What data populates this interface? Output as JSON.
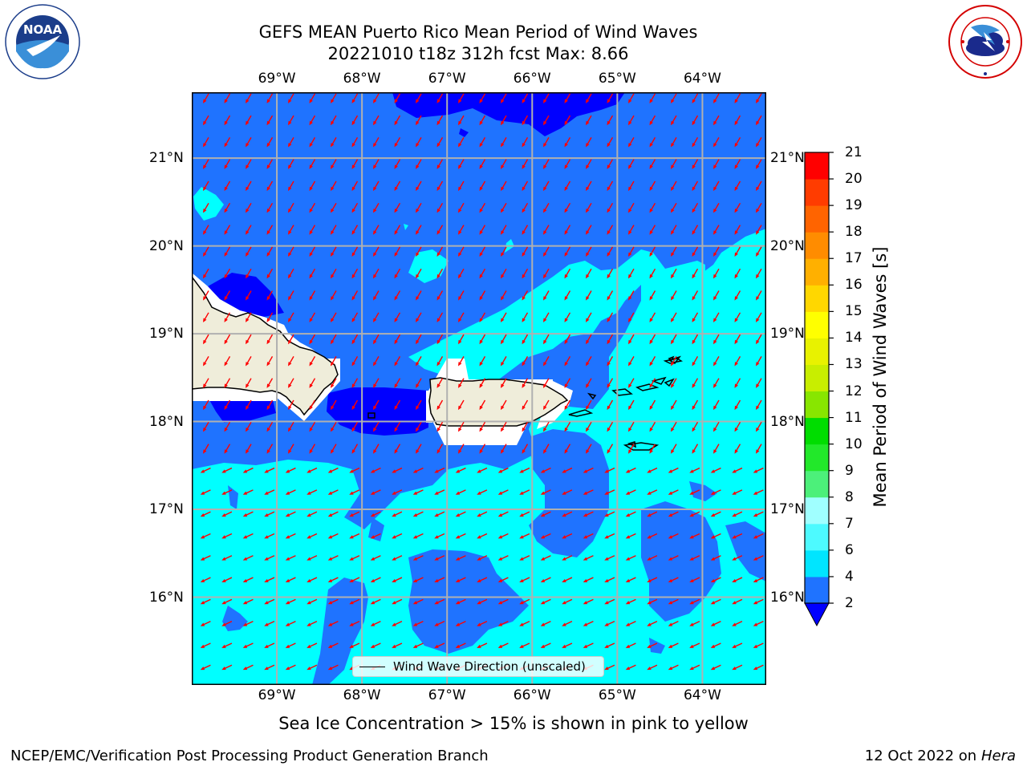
{
  "title": {
    "line1": "GEFS MEAN Puerto Rico Mean Period of Wind Waves",
    "line2": "20221010 t18z 312h fcst   Max: 8.66"
  },
  "logos": {
    "left": {
      "name": "noaa-logo",
      "text": "NOAA",
      "ring_text": "NATIONAL OCEANIC AND ATMOSPHERIC ADMINISTRATION · U.S. DEPARTMENT OF COMMERCE"
    },
    "right": {
      "name": "nws-logo",
      "ring_text": "NATIONAL WEATHER SERVICE"
    }
  },
  "map": {
    "lon_labels": [
      "69°W",
      "68°W",
      "67°W",
      "66°W",
      "65°W",
      "64°W"
    ],
    "lat_labels": [
      "21°N",
      "20°N",
      "19°N",
      "18°N",
      "17°N",
      "16°N"
    ],
    "extent": {
      "lon": [
        -70,
        -63.25
      ],
      "lat": [
        15,
        21.75
      ]
    },
    "grid": true,
    "land_color": "#efedda",
    "arrow_color": "#ff0000",
    "wind_wave_direction": "from northeast toward southwest"
  },
  "legend": {
    "label": "Wind Wave Direction (unscaled)",
    "placement": "bottom-center"
  },
  "colorbar": {
    "label": "Mean Period of Wind Waves [s]",
    "ticks": [
      "2",
      "4",
      "6",
      "7",
      "8",
      "9",
      "10",
      "11",
      "12",
      "13",
      "14",
      "15",
      "16",
      "17",
      "18",
      "19",
      "20",
      "21"
    ],
    "colors": [
      "#1f73ff",
      "#00e5ff",
      "#4dfaff",
      "#a0ffff",
      "#4cf07a",
      "#22e82a",
      "#00dd00",
      "#88e600",
      "#c8ee00",
      "#e8f200",
      "#ffff00",
      "#ffd700",
      "#ffb000",
      "#ff8c00",
      "#ff6400",
      "#ff3c00",
      "#ff0000"
    ],
    "under_color": "#0000ff"
  },
  "chart_data": {
    "type": "heatmap",
    "title": "GEFS MEAN Puerto Rico Mean Period of Wind Waves",
    "subtitle": "20221010 t18z 312h fcst   Max: 8.66",
    "variable": "Mean Period of Wind Waves [s]",
    "max": 8.66,
    "levels": [
      2,
      4,
      6,
      7,
      8,
      9,
      10,
      11,
      12,
      13,
      14,
      15,
      16,
      17,
      18,
      19,
      20,
      21
    ],
    "lon_range": [
      -70,
      -63.25
    ],
    "lat_range": [
      15,
      21.75
    ],
    "xlabel": "",
    "ylabel": ""
  },
  "note": "Sea Ice Concentration > 15% is shown in pink to yellow",
  "footer": {
    "left": "NCEP/EMC/Verification Post Processing Product Generation Branch",
    "right_date": "12 Oct 2022 on ",
    "right_host": "Hera"
  }
}
